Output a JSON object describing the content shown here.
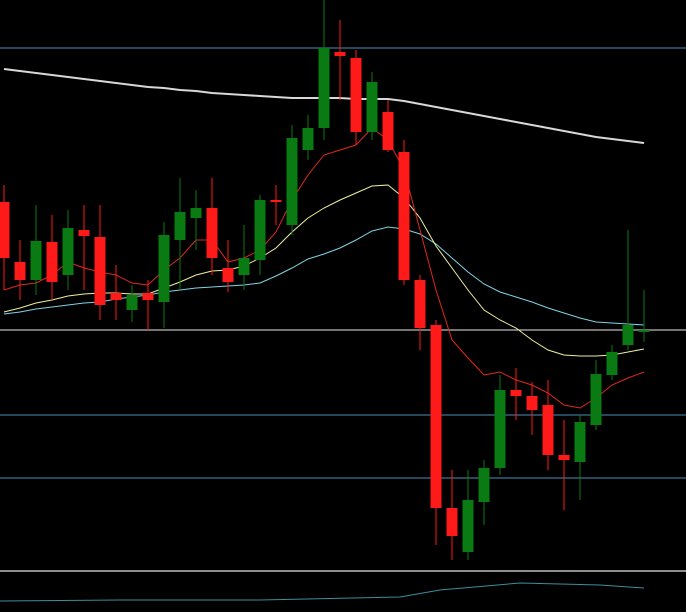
{
  "chart_data": {
    "type": "candlestick",
    "categories": [
      null,
      null,
      null,
      null,
      null,
      null,
      null,
      null,
      null,
      null,
      null,
      null,
      null,
      null,
      null,
      null,
      null,
      null,
      null,
      null,
      null,
      null,
      null,
      null,
      null,
      null,
      null,
      null,
      null,
      null,
      null,
      null,
      null,
      null,
      null,
      null,
      null,
      null,
      null,
      null,
      null
    ],
    "open": [
      410,
      350,
      332,
      370,
      337,
      382,
      375,
      319,
      302,
      319,
      310,
      372,
      394,
      404,
      344,
      337,
      352,
      412,
      387,
      462,
      484,
      560,
      554,
      480,
      500,
      460,
      332,
      287,
      104,
      60,
      110,
      144,
      222,
      216,
      207,
      157,
      150,
      187,
      237,
      267,
      280
    ],
    "high": [
      427,
      372,
      407,
      397,
      402,
      407,
      407,
      347,
      327,
      332,
      390,
      434,
      422,
      434,
      372,
      387,
      417,
      427,
      487,
      497,
      612,
      592,
      562,
      540,
      512,
      472,
      337,
      292,
      142,
      142,
      152,
      237,
      244,
      230,
      232,
      192,
      197,
      252,
      267,
      382,
      322
    ],
    "low": [
      322,
      312,
      317,
      312,
      322,
      322,
      292,
      292,
      290,
      282,
      284,
      322,
      362,
      337,
      320,
      322,
      337,
      387,
      377,
      452,
      472,
      512,
      467,
      472,
      460,
      327,
      262,
      67,
      52,
      52,
      87,
      137,
      192,
      177,
      142,
      102,
      112,
      182,
      232,
      262,
      270
    ],
    "close": [
      354,
      332,
      371,
      330,
      384,
      376,
      307,
      312,
      317,
      312,
      377,
      400,
      404,
      354,
      330,
      354,
      412,
      410,
      474,
      484,
      564,
      556,
      480,
      530,
      462,
      332,
      284,
      104,
      76,
      112,
      144,
      222,
      216,
      202,
      157,
      152,
      190,
      238,
      260,
      287,
      282
    ],
    "up_color": "#0a7a12",
    "down_color": "#ff1a1a",
    "ylim": [
      0,
      612
    ],
    "series": [
      {
        "color": "#d8d8d8",
        "values": [
          543,
          541,
          539,
          537,
          535,
          533,
          531,
          529,
          527,
          525,
          524,
          522,
          521,
          519,
          518,
          517,
          516,
          515,
          514,
          514,
          514,
          514,
          513,
          513,
          513,
          511,
          508,
          505,
          502,
          499,
          496,
          493,
          490,
          487,
          484,
          481,
          478,
          475,
          473,
          471,
          469
        ]
      },
      {
        "color": "#7fd3e6",
        "values": [
          298,
          300,
          303,
          305,
          307,
          309,
          310,
          313,
          315,
          317,
          320,
          322,
          324,
          325,
          326,
          327,
          329,
          336,
          344,
          353,
          358,
          364,
          372,
          381,
          385,
          383,
          378,
          368,
          354,
          340,
          328,
          320,
          315,
          310,
          304,
          299,
          294,
          290,
          289,
          288,
          287
        ]
      },
      {
        "color": "#f0f0a0",
        "values": [
          300,
          304,
          309,
          312,
          316,
          318,
          319,
          319,
          318,
          318,
          324,
          330,
          337,
          341,
          342,
          346,
          354,
          364,
          380,
          394,
          404,
          412,
          419,
          426,
          427,
          414,
          394,
          366,
          344,
          322,
          302,
          292,
          284,
          272,
          262,
          257,
          256,
          256,
          257,
          260,
          263
        ]
      },
      {
        "color": "#e0281e",
        "values": [
          322,
          327,
          329,
          337,
          350,
          344,
          340,
          337,
          329,
          327,
          342,
          354,
          372,
          372,
          350,
          354,
          362,
          380,
          412,
          437,
          457,
          462,
          467,
          484,
          472,
          442,
          382,
          322,
          272,
          254,
          237,
          240,
          232,
          227,
          219,
          207,
          204,
          214,
          227,
          234,
          240
        ]
      }
    ],
    "hlines": {
      "values": [
        564,
        282,
        197,
        134
      ],
      "colors": [
        "#4a90b8",
        "#e8e8e8",
        "#4a90b8",
        "#4a90b8"
      ]
    }
  }
}
